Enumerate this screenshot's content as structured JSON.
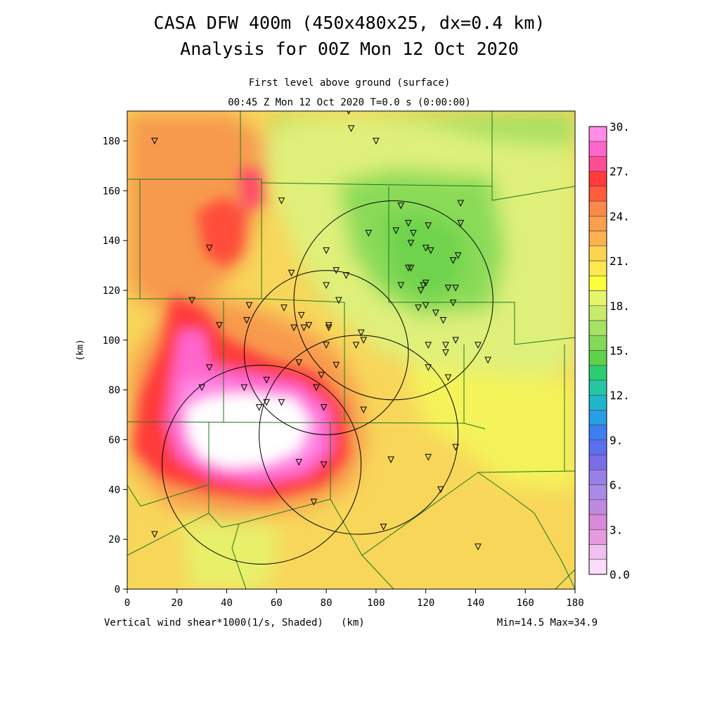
{
  "header": {
    "title_line1": "CASA DFW 400m (450x480x25, dx=0.4 km)",
    "title_line2": "Analysis for 00Z Mon 12 Oct 2020",
    "subtitle_line1": "First level above ground (surface)",
    "subtitle_line2": "00:45 Z Mon 12 Oct 2020    T=0.0 s (0:00:00)"
  },
  "footer": {
    "variable_label": "Vertical wind shear*1000(1/s, Shaded)",
    "xunit": "(km)",
    "minmax": "Min=14.5 Max=34.9"
  },
  "chart_data": {
    "type": "heatmap",
    "title": "CASA DFW 400m (450x480x25, dx=0.4 km)",
    "xlabel": "(km)",
    "ylabel": "(km)",
    "xlim": [
      0,
      180
    ],
    "ylim": [
      0,
      192
    ],
    "x_ticks": [
      "0",
      "20",
      "40",
      "60",
      "80",
      "100",
      "120",
      "140",
      "160",
      "180"
    ],
    "y_ticks": [
      "0",
      "20",
      "40",
      "60",
      "80",
      "100",
      "120",
      "140",
      "160",
      "180"
    ],
    "min": 14.5,
    "max": 34.9,
    "colorbar": {
      "labels": [
        "30.",
        "27.",
        "24.",
        "21.",
        "18.",
        "15.",
        "12.",
        "9.",
        "6.",
        "3.",
        "0.0"
      ],
      "colors_top_to_bottom": [
        "#ff8ce6",
        "#ff66cc",
        "#ff4d94",
        "#ff3b3b",
        "#ff5c3b",
        "#fb8a4a",
        "#fa9f4e",
        "#fcb24e",
        "#fdd44f",
        "#ffe84f",
        "#fbff3b",
        "#e6f569",
        "#c8eb6e",
        "#a6e263",
        "#84da57",
        "#5fd14a",
        "#2bcd72",
        "#24c7a4",
        "#1fb6cc",
        "#289ee6",
        "#3b7ff0",
        "#5a70ec",
        "#7a6ee8",
        "#9980e8",
        "#a98ae6",
        "#c089e0",
        "#d78ad8",
        "#e69be0",
        "#f0c0f0",
        "#fbdcfb"
      ]
    },
    "radar_circles": [
      {
        "cx": 107,
        "cy": 116,
        "r": 40
      },
      {
        "cx": 80,
        "cy": 95,
        "r": 33
      },
      {
        "cx": 93,
        "cy": 62,
        "r": 40
      },
      {
        "cx": 54,
        "cy": 50,
        "r": 40
      }
    ],
    "stations": [
      [
        11,
        180
      ],
      [
        89,
        192
      ],
      [
        90,
        185
      ],
      [
        100,
        180
      ],
      [
        62,
        156
      ],
      [
        33,
        137
      ],
      [
        110,
        154
      ],
      [
        134,
        155
      ],
      [
        113,
        147
      ],
      [
        134,
        147
      ],
      [
        97,
        143
      ],
      [
        108,
        144
      ],
      [
        115,
        143
      ],
      [
        121,
        146
      ],
      [
        114,
        139
      ],
      [
        120,
        137
      ],
      [
        122,
        136
      ],
      [
        133,
        134
      ],
      [
        131,
        132
      ],
      [
        80,
        136
      ],
      [
        113,
        129
      ],
      [
        114,
        129
      ],
      [
        66,
        127
      ],
      [
        84,
        128
      ],
      [
        88,
        126
      ],
      [
        110,
        122
      ],
      [
        80,
        122
      ],
      [
        118,
        120
      ],
      [
        119,
        122
      ],
      [
        120,
        123
      ],
      [
        129,
        121
      ],
      [
        132,
        121
      ],
      [
        26,
        116
      ],
      [
        49,
        114
      ],
      [
        63,
        113
      ],
      [
        85,
        116
      ],
      [
        117,
        113
      ],
      [
        120,
        114
      ],
      [
        131,
        115
      ],
      [
        124,
        111
      ],
      [
        127,
        108
      ],
      [
        48,
        108
      ],
      [
        37,
        106
      ],
      [
        70,
        110
      ],
      [
        67,
        105
      ],
      [
        71,
        105
      ],
      [
        73,
        106
      ],
      [
        81,
        106
      ],
      [
        81,
        105
      ],
      [
        94,
        103
      ],
      [
        92,
        98
      ],
      [
        95,
        100
      ],
      [
        80,
        98
      ],
      [
        121,
        98
      ],
      [
        128,
        98
      ],
      [
        132,
        100
      ],
      [
        141,
        98
      ],
      [
        145,
        92
      ],
      [
        128,
        95
      ],
      [
        121,
        89
      ],
      [
        33,
        89
      ],
      [
        69,
        91
      ],
      [
        84,
        90
      ],
      [
        78,
        86
      ],
      [
        129,
        85
      ],
      [
        56,
        84
      ],
      [
        30,
        81
      ],
      [
        47,
        81
      ],
      [
        76,
        81
      ],
      [
        56,
        75
      ],
      [
        62,
        75
      ],
      [
        53,
        73
      ],
      [
        79,
        73
      ],
      [
        95,
        72
      ],
      [
        132,
        57
      ],
      [
        121,
        53
      ],
      [
        69,
        51
      ],
      [
        79,
        50
      ],
      [
        106,
        52
      ],
      [
        126,
        40
      ],
      [
        75,
        35
      ],
      [
        103,
        25
      ],
      [
        11,
        22
      ],
      [
        141,
        17
      ]
    ],
    "grid": false
  }
}
